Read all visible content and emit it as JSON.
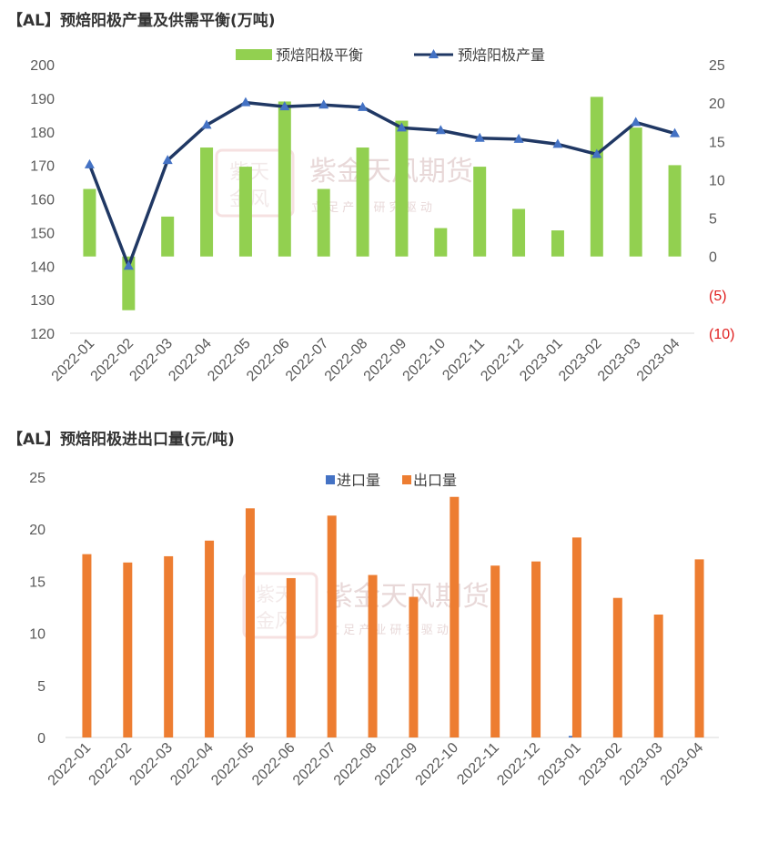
{
  "charts": {
    "balance": {
      "title": "【AL】预焙阳极产量及供需平衡(万吨)"
    },
    "trade": {
      "title": "【AL】预焙阳极进出口量(元/吨)"
    }
  },
  "watermark": {
    "name": "紫金天风期货",
    "slogan": "立 足 产 业   研 究 驱 动"
  },
  "colors": {
    "balance_bar": "#92d050",
    "production_line": "#203864",
    "production_marker": "#4472c4",
    "import_bar": "#4472c4",
    "export_bar": "#ed7d31",
    "negative_tick": "#e02020"
  },
  "chart_data": [
    {
      "type": "bar+line",
      "title": "【AL】预焙阳极产量及供需平衡(万吨)",
      "categories": [
        "2022-01",
        "2022-02",
        "2022-03",
        "2022-04",
        "2022-05",
        "2022-06",
        "2022-07",
        "2022-08",
        "2022-09",
        "2022-10",
        "2022-11",
        "2022-12",
        "2023-01",
        "2023-02",
        "2023-03",
        "2023-04"
      ],
      "series": [
        {
          "name": "预焙阳极平衡",
          "type": "bar",
          "axis": "right",
          "values": [
            8.8,
            -7.0,
            5.2,
            14.2,
            11.7,
            20.2,
            8.8,
            14.2,
            17.7,
            3.7,
            11.7,
            6.2,
            3.4,
            20.8,
            16.8,
            11.9
          ]
        },
        {
          "name": "预焙阳极产量",
          "type": "line",
          "axis": "left",
          "values": [
            170.2,
            140.0,
            171.5,
            182.0,
            188.7,
            187.5,
            188.0,
            187.3,
            181.2,
            180.4,
            178.1,
            177.8,
            176.3,
            173.3,
            182.8,
            179.5
          ]
        }
      ],
      "left_axis": {
        "min": 120,
        "max": 200,
        "step": 10,
        "tick_labels": [
          "120",
          "130",
          "140",
          "150",
          "160",
          "170",
          "180",
          "190",
          "200"
        ]
      },
      "right_axis": {
        "min": -10,
        "max": 25,
        "step": 5,
        "tick_labels": [
          "(10)",
          "(5)",
          "0",
          "5",
          "10",
          "15",
          "20",
          "25"
        ]
      },
      "legend_position": "top-center"
    },
    {
      "type": "bar",
      "title": "【AL】预焙阳极进出口量(元/吨)",
      "categories": [
        "2022-01",
        "2022-02",
        "2022-03",
        "2022-04",
        "2022-05",
        "2022-06",
        "2022-07",
        "2022-08",
        "2022-09",
        "2022-10",
        "2022-11",
        "2022-12",
        "2023-01",
        "2023-02",
        "2023-03",
        "2023-04"
      ],
      "series": [
        {
          "name": "进口量",
          "values": [
            0,
            0,
            0,
            0,
            0,
            0,
            0,
            0,
            0,
            0,
            0,
            0,
            0.15,
            0,
            0,
            0
          ]
        },
        {
          "name": "出口量",
          "values": [
            17.6,
            16.8,
            17.4,
            18.9,
            22.0,
            15.3,
            21.3,
            15.6,
            13.5,
            23.1,
            16.5,
            16.9,
            19.2,
            13.4,
            11.8,
            17.1
          ]
        }
      ],
      "y_axis": {
        "min": 0,
        "max": 25,
        "step": 5,
        "tick_labels": [
          "0",
          "5",
          "10",
          "15",
          "20",
          "25"
        ]
      },
      "legend_position": "top-center"
    }
  ]
}
